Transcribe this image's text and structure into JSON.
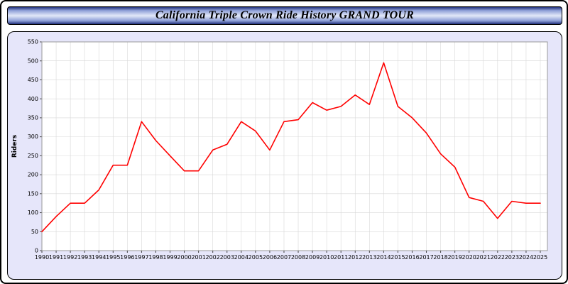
{
  "header": {
    "title": "California Triple Crown Ride History GRAND TOUR"
  },
  "colors": {
    "line": "#ff0000",
    "panel_bg": "#e6e6fa",
    "plot_bg": "#ffffff",
    "grid": "#d8d8d8",
    "plot_border": "#999999",
    "axis": "#444444",
    "banner_dark": "#1f2f7a",
    "banner_light": "#e2e8f8"
  },
  "chart_data": {
    "type": "line",
    "title": "California Triple Crown Ride History GRAND TOUR",
    "xlabel": "",
    "ylabel": "Riders",
    "ylim": [
      0,
      550
    ],
    "ytick_step": 50,
    "grid": true,
    "legend_position": "none",
    "categories": [
      "1990",
      "1991",
      "1992",
      "1993",
      "1994",
      "1995",
      "1996",
      "1997",
      "1998",
      "1999",
      "2000",
      "2001",
      "2002",
      "2003",
      "2004",
      "2005",
      "2006",
      "2007",
      "2008",
      "2009",
      "2010",
      "2011",
      "2012",
      "2013",
      "2014",
      "2015",
      "2016",
      "2017",
      "2018",
      "2019",
      "2020",
      "2021",
      "2022",
      "2023",
      "2024",
      "2025"
    ],
    "series": [
      {
        "name": "Riders",
        "color": "#ff0000",
        "values": [
          50,
          90,
          125,
          125,
          160,
          225,
          225,
          340,
          290,
          250,
          210,
          210,
          265,
          280,
          340,
          315,
          265,
          340,
          345,
          390,
          370,
          380,
          410,
          385,
          495,
          380,
          350,
          310,
          255,
          220,
          140,
          130,
          85,
          130,
          125,
          125
        ]
      }
    ]
  }
}
